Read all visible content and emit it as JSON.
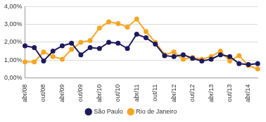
{
  "chart_data": {
    "type": "line",
    "categories": [
      "abr/08",
      null,
      "out/08",
      null,
      "abr/09",
      null,
      "out/09",
      null,
      "abr/10",
      null,
      "out/10",
      null,
      "abr/11",
      null,
      "out/11",
      null,
      "abr/12",
      null,
      "out/12",
      null,
      "abr/13",
      null,
      "out/13",
      null,
      "abr/14",
      null
    ],
    "series": [
      {
        "name": "São Paulo",
        "color": "#1f1a5c",
        "marker": "circle",
        "values": [
          1.8,
          1.7,
          0.95,
          1.5,
          1.8,
          1.95,
          1.3,
          1.7,
          1.65,
          2.0,
          1.95,
          1.65,
          2.45,
          2.25,
          1.9,
          1.25,
          1.2,
          1.3,
          1.1,
          0.95,
          1.05,
          1.3,
          1.2,
          0.8,
          0.75,
          0.8
        ]
      },
      {
        "name": "Rio de Janeiro",
        "color": "#f5a623",
        "marker": "circle",
        "values": [
          0.9,
          0.9,
          1.45,
          1.2,
          1.05,
          1.6,
          2.0,
          2.1,
          2.8,
          3.15,
          3.05,
          2.85,
          3.3,
          2.6,
          2.0,
          1.3,
          1.45,
          1.05,
          1.15,
          1.05,
          1.2,
          1.5,
          0.95,
          1.25,
          0.7,
          0.5
        ]
      }
    ],
    "ylim": [
      0,
      4
    ],
    "yticks": [
      {
        "value": 0,
        "label": "0,00%"
      },
      {
        "value": 1,
        "label": "1,00%"
      },
      {
        "value": 2,
        "label": "2,00%"
      },
      {
        "value": 3,
        "label": "3,00%"
      },
      {
        "value": 4,
        "label": "4,00%"
      }
    ],
    "grid": true,
    "legend": "bottom"
  }
}
